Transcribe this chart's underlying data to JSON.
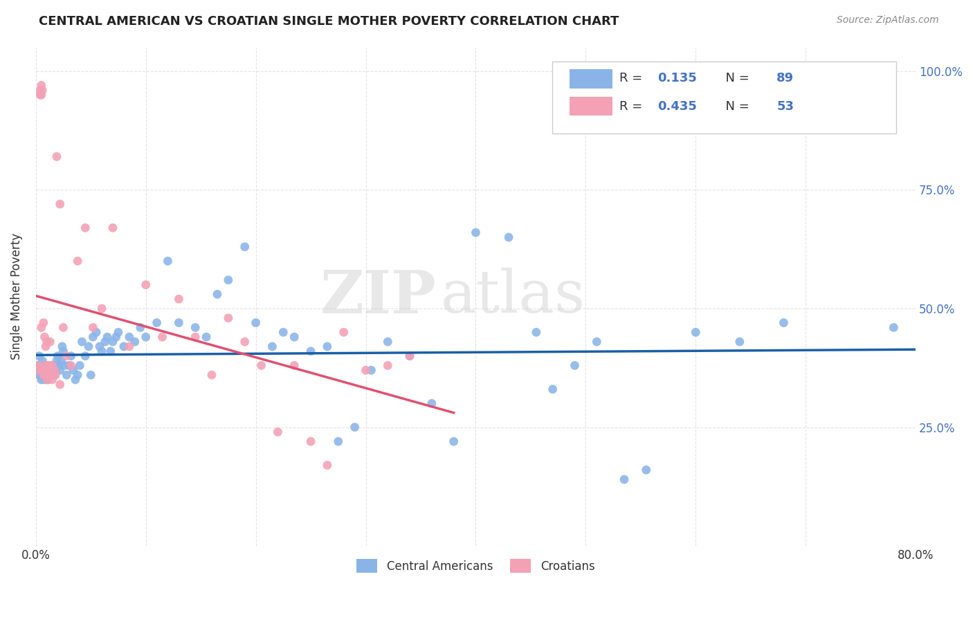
{
  "title": "CENTRAL AMERICAN VS CROATIAN SINGLE MOTHER POVERTY CORRELATION CHART",
  "source": "Source: ZipAtlas.com",
  "ylabel": "Single Mother Poverty",
  "xlim": [
    0.0,
    0.8
  ],
  "ylim": [
    0.0,
    1.05
  ],
  "ytick_positions": [
    0.0,
    0.25,
    0.5,
    0.75,
    1.0
  ],
  "ytick_labels": [
    "",
    "25.0%",
    "50.0%",
    "75.0%",
    "100.0%"
  ],
  "central_americans_color": "#8ab4e8",
  "croatians_color": "#f4a0b5",
  "trend_blue": "#1a5fa8",
  "trend_pink": "#e05070",
  "R_blue": 0.135,
  "N_blue": 89,
  "R_pink": 0.435,
  "N_pink": 53,
  "watermark_zip": "ZIP",
  "watermark_atlas": "atlas",
  "grid_color": "#dddddd",
  "background_color": "#ffffff",
  "ca_x": [
    0.002,
    0.003,
    0.003,
    0.004,
    0.005,
    0.005,
    0.006,
    0.006,
    0.007,
    0.008,
    0.008,
    0.009,
    0.01,
    0.01,
    0.011,
    0.012,
    0.013,
    0.014,
    0.015,
    0.016,
    0.017,
    0.018,
    0.019,
    0.02,
    0.021,
    0.022,
    0.023,
    0.024,
    0.025,
    0.026,
    0.028,
    0.03,
    0.032,
    0.034,
    0.036,
    0.038,
    0.04,
    0.042,
    0.045,
    0.048,
    0.05,
    0.052,
    0.055,
    0.058,
    0.06,
    0.063,
    0.065,
    0.068,
    0.07,
    0.073,
    0.075,
    0.08,
    0.085,
    0.09,
    0.095,
    0.1,
    0.11,
    0.12,
    0.13,
    0.145,
    0.155,
    0.165,
    0.175,
    0.19,
    0.2,
    0.215,
    0.225,
    0.235,
    0.25,
    0.265,
    0.275,
    0.29,
    0.305,
    0.32,
    0.34,
    0.36,
    0.38,
    0.4,
    0.43,
    0.455,
    0.47,
    0.49,
    0.51,
    0.535,
    0.555,
    0.6,
    0.64,
    0.68,
    0.78
  ],
  "ca_y": [
    0.38,
    0.36,
    0.4,
    0.37,
    0.35,
    0.38,
    0.36,
    0.39,
    0.37,
    0.35,
    0.38,
    0.36,
    0.37,
    0.38,
    0.35,
    0.37,
    0.36,
    0.38,
    0.37,
    0.36,
    0.38,
    0.37,
    0.39,
    0.4,
    0.38,
    0.37,
    0.39,
    0.42,
    0.41,
    0.38,
    0.36,
    0.38,
    0.4,
    0.37,
    0.35,
    0.36,
    0.38,
    0.43,
    0.4,
    0.42,
    0.36,
    0.44,
    0.45,
    0.42,
    0.41,
    0.43,
    0.44,
    0.41,
    0.43,
    0.44,
    0.45,
    0.42,
    0.44,
    0.43,
    0.46,
    0.44,
    0.47,
    0.6,
    0.47,
    0.46,
    0.44,
    0.53,
    0.56,
    0.63,
    0.47,
    0.42,
    0.45,
    0.44,
    0.41,
    0.42,
    0.22,
    0.25,
    0.37,
    0.43,
    0.4,
    0.3,
    0.22,
    0.66,
    0.65,
    0.45,
    0.33,
    0.38,
    0.43,
    0.14,
    0.16,
    0.45,
    0.43,
    0.47,
    0.46
  ],
  "cr_x": [
    0.002,
    0.003,
    0.004,
    0.004,
    0.005,
    0.005,
    0.006,
    0.006,
    0.007,
    0.008,
    0.009,
    0.01,
    0.011,
    0.012,
    0.013,
    0.015,
    0.017,
    0.019,
    0.022,
    0.025,
    0.028,
    0.032,
    0.038,
    0.045,
    0.052,
    0.06,
    0.07,
    0.085,
    0.1,
    0.115,
    0.13,
    0.145,
    0.16,
    0.175,
    0.19,
    0.205,
    0.22,
    0.235,
    0.25,
    0.265,
    0.28,
    0.3,
    0.32,
    0.34,
    0.005,
    0.007,
    0.008,
    0.009,
    0.01,
    0.012,
    0.015,
    0.018,
    0.022
  ],
  "cr_y": [
    0.37,
    0.38,
    0.95,
    0.96,
    0.97,
    0.95,
    0.96,
    0.37,
    0.36,
    0.38,
    0.36,
    0.35,
    0.37,
    0.36,
    0.43,
    0.38,
    0.37,
    0.82,
    0.72,
    0.46,
    0.4,
    0.38,
    0.6,
    0.67,
    0.46,
    0.5,
    0.67,
    0.42,
    0.55,
    0.44,
    0.52,
    0.44,
    0.36,
    0.48,
    0.43,
    0.38,
    0.24,
    0.38,
    0.22,
    0.17,
    0.45,
    0.37,
    0.38,
    0.4,
    0.46,
    0.47,
    0.44,
    0.42,
    0.43,
    0.38,
    0.35,
    0.36,
    0.34
  ]
}
